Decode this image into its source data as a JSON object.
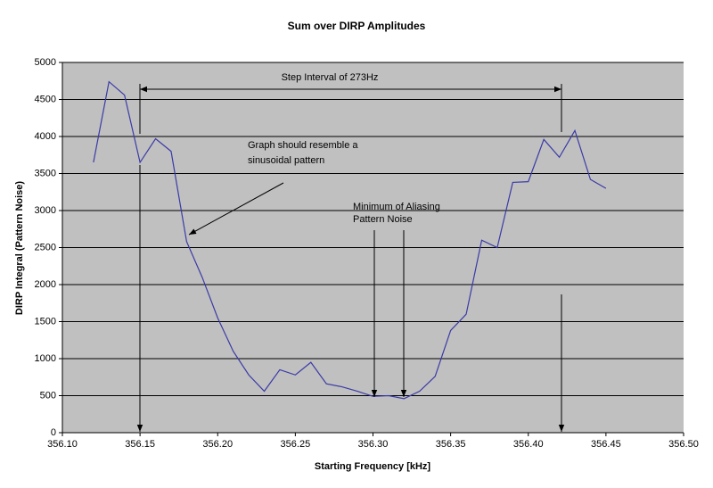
{
  "chart_data": {
    "type": "line",
    "title": "Sum over DIRP Amplitudes",
    "xlabel": "Starting Frequency [kHz]",
    "ylabel": "DIRP Integral (Pattern Noise)",
    "x": [
      356.12,
      356.13,
      356.14,
      356.15,
      356.16,
      356.17,
      356.18,
      356.19,
      356.2,
      356.21,
      356.22,
      356.23,
      356.24,
      356.25,
      356.26,
      356.27,
      356.28,
      356.29,
      356.3,
      356.31,
      356.32,
      356.33,
      356.34,
      356.35,
      356.36,
      356.37,
      356.38,
      356.39,
      356.4,
      356.41,
      356.42,
      356.43,
      356.44,
      356.45
    ],
    "values": [
      3650,
      4740,
      4560,
      3650,
      3970,
      3800,
      2580,
      2100,
      1550,
      1100,
      780,
      560,
      850,
      780,
      950,
      660,
      620,
      560,
      490,
      500,
      460,
      560,
      760,
      1380,
      1600,
      2600,
      2500,
      3380,
      3390,
      3960,
      3720,
      4080,
      3420,
      3300
    ],
    "color": "#3a3aa8",
    "xlim": [
      356.1,
      356.5
    ],
    "xticks": [
      {
        "value": 356.1,
        "label": "356.10"
      },
      356.15,
      {
        "value": 356.2,
        "label": "356.20"
      },
      356.25,
      {
        "value": 356.3,
        "label": "356.30"
      },
      356.35,
      {
        "value": 356.4,
        "label": "356.40"
      },
      356.45,
      {
        "value": 356.5,
        "label": "356.50"
      }
    ],
    "ylim": [
      0,
      5000
    ],
    "yticks": [
      0,
      500,
      1000,
      1500,
      2000,
      2500,
      3000,
      3500,
      4000,
      4500,
      5000
    ],
    "grid": true,
    "annotations": {
      "step": "Step Interval of 273Hz",
      "sinusoid": [
        "Graph should resemble a",
        "sinusoidal pattern"
      ],
      "minimum": [
        "Minimum of Aliasing",
        "Pattern Noise"
      ]
    }
  }
}
